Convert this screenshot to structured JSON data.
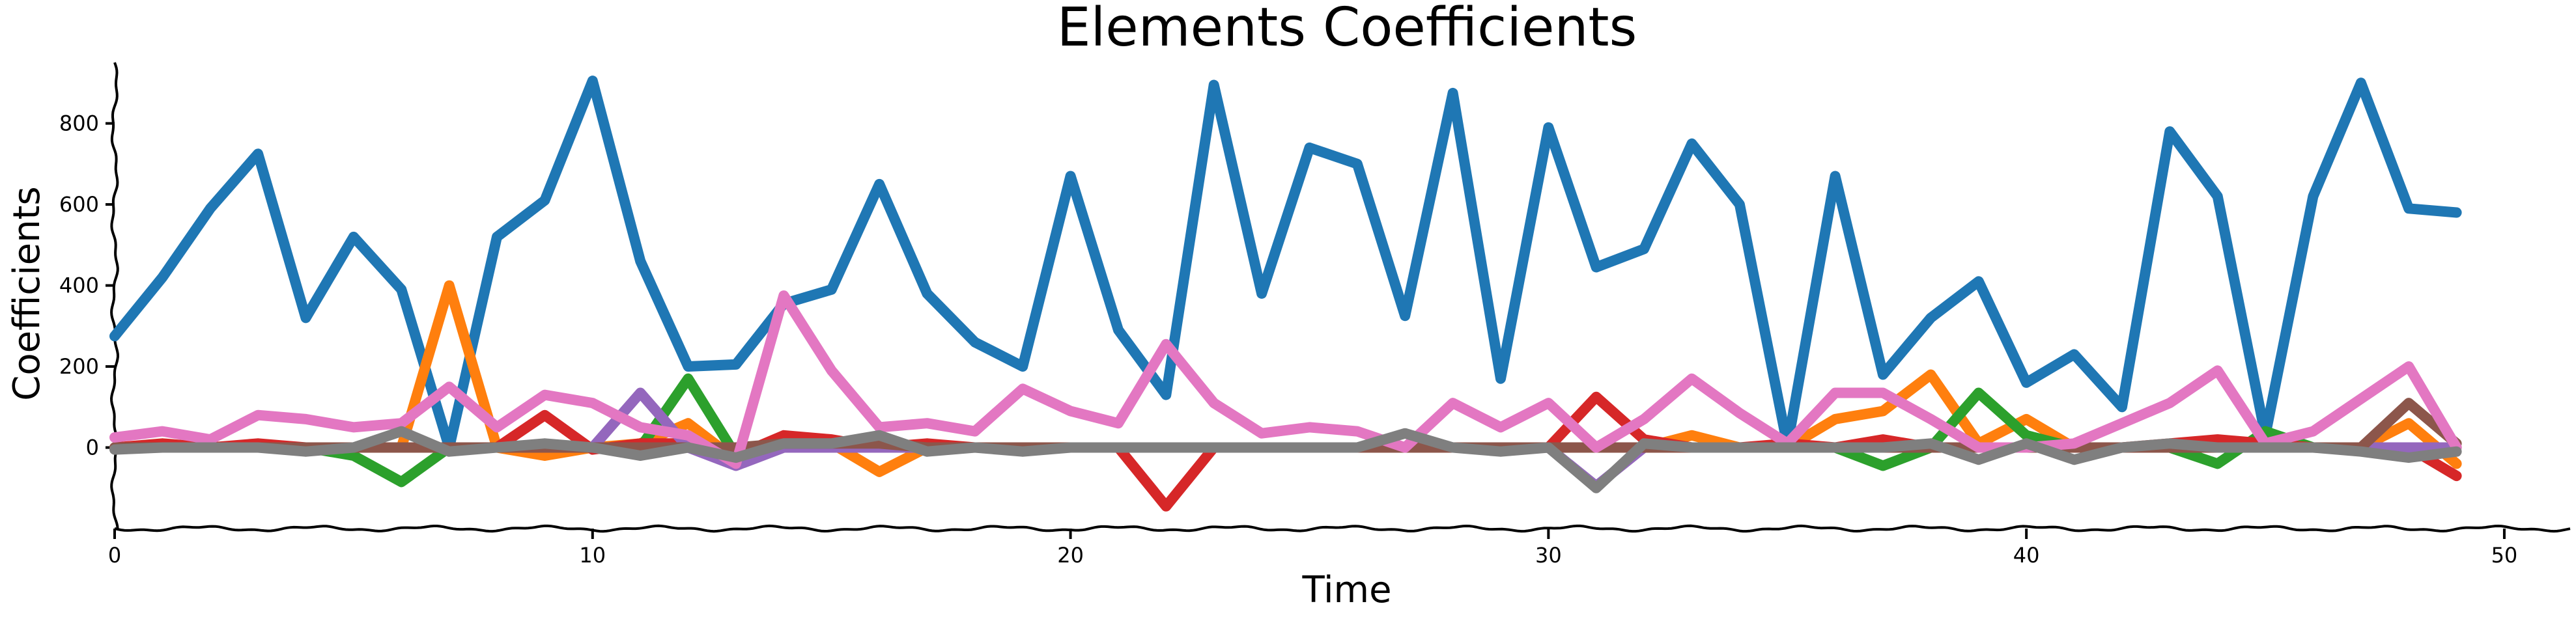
{
  "chart_data": {
    "type": "line",
    "title": "Elements Coefficients",
    "xlabel": "Time",
    "ylabel": "Coefficients",
    "xlim": [
      0,
      51.5
    ],
    "ylim": [
      -200,
      960
    ],
    "grid": false,
    "legend": "none",
    "xticks": [
      0,
      10,
      20,
      30,
      40,
      50
    ],
    "xtick_labels": [
      "0",
      "10",
      "20",
      "30",
      "40",
      "50"
    ],
    "yticks": [
      0,
      200,
      400,
      600,
      800
    ],
    "ytick_labels": [
      "0",
      "200",
      "400",
      "600",
      "800"
    ],
    "x": [
      0,
      1,
      2,
      3,
      4,
      5,
      6,
      7,
      8,
      9,
      10,
      11,
      12,
      13,
      14,
      15,
      16,
      17,
      18,
      19,
      20,
      21,
      22,
      23,
      24,
      25,
      26,
      27,
      28,
      29,
      30,
      31,
      32,
      33,
      34,
      35,
      36,
      37,
      38,
      39,
      40,
      41,
      42,
      43,
      44,
      45,
      46,
      47,
      48,
      49
    ],
    "series": [
      {
        "color": "#1f77b4",
        "values": [
          275,
          420,
          590,
          725,
          320,
          520,
          390,
          0,
          520,
          610,
          905,
          460,
          200,
          205,
          355,
          390,
          650,
          380,
          260,
          200,
          670,
          290,
          130,
          895,
          380,
          740,
          700,
          325,
          875,
          170,
          790,
          445,
          490,
          750,
          600,
          5,
          670,
          180,
          320,
          410,
          160,
          230,
          100,
          780,
          620,
          30,
          620,
          900,
          590,
          580
        ]
      },
      {
        "color": "#ff7f0e",
        "values": [
          0,
          0,
          0,
          0,
          0,
          0,
          0,
          400,
          0,
          -20,
          0,
          10,
          60,
          -30,
          20,
          10,
          -60,
          0,
          0,
          0,
          0,
          0,
          0,
          0,
          0,
          0,
          0,
          0,
          0,
          0,
          0,
          0,
          0,
          30,
          0,
          0,
          70,
          90,
          180,
          10,
          70,
          0,
          0,
          0,
          0,
          0,
          0,
          0,
          60,
          -40
        ]
      },
      {
        "color": "#2ca02c",
        "values": [
          0,
          0,
          0,
          0,
          0,
          -20,
          -85,
          0,
          0,
          0,
          0,
          0,
          170,
          -20,
          0,
          0,
          0,
          0,
          0,
          0,
          0,
          0,
          0,
          0,
          0,
          0,
          0,
          0,
          0,
          0,
          0,
          0,
          0,
          0,
          0,
          0,
          0,
          -45,
          0,
          135,
          30,
          0,
          0,
          0,
          -40,
          40,
          0,
          0,
          0,
          0
        ]
      },
      {
        "color": "#d62728",
        "values": [
          0,
          10,
          0,
          10,
          0,
          0,
          0,
          0,
          0,
          80,
          -5,
          10,
          10,
          -20,
          30,
          20,
          0,
          10,
          0,
          0,
          0,
          0,
          -145,
          0,
          0,
          0,
          0,
          0,
          0,
          0,
          0,
          125,
          20,
          0,
          0,
          10,
          0,
          20,
          0,
          0,
          0,
          0,
          0,
          10,
          20,
          10,
          0,
          0,
          0,
          -70
        ]
      },
      {
        "color": "#9467bd",
        "values": [
          0,
          0,
          0,
          0,
          0,
          0,
          0,
          0,
          0,
          0,
          0,
          135,
          0,
          -45,
          0,
          0,
          0,
          0,
          0,
          0,
          0,
          0,
          0,
          0,
          0,
          0,
          0,
          0,
          0,
          0,
          0,
          -95,
          0,
          0,
          0,
          0,
          0,
          0,
          0,
          0,
          0,
          0,
          0,
          0,
          0,
          0,
          0,
          0,
          0,
          0
        ]
      },
      {
        "color": "#8c564b",
        "values": [
          0,
          0,
          0,
          0,
          0,
          0,
          0,
          0,
          0,
          0,
          0,
          0,
          0,
          0,
          10,
          10,
          10,
          0,
          0,
          0,
          0,
          0,
          0,
          0,
          0,
          0,
          0,
          0,
          0,
          0,
          0,
          0,
          0,
          0,
          0,
          0,
          0,
          0,
          0,
          0,
          0,
          0,
          0,
          0,
          0,
          0,
          0,
          0,
          110,
          10
        ]
      },
      {
        "color": "#e377c2",
        "values": [
          25,
          40,
          20,
          80,
          70,
          50,
          60,
          150,
          50,
          130,
          110,
          50,
          30,
          -40,
          375,
          190,
          50,
          60,
          40,
          145,
          90,
          60,
          255,
          110,
          35,
          50,
          40,
          0,
          110,
          50,
          110,
          0,
          70,
          170,
          85,
          10,
          135,
          135,
          70,
          0,
          0,
          10,
          60,
          110,
          190,
          10,
          40,
          120,
          200,
          0
        ]
      },
      {
        "color": "#7f7f7f",
        "values": [
          -5,
          0,
          0,
          0,
          -10,
          0,
          40,
          -10,
          0,
          10,
          0,
          -20,
          0,
          -25,
          10,
          10,
          30,
          -10,
          0,
          -10,
          0,
          0,
          0,
          0,
          0,
          0,
          0,
          35,
          0,
          -10,
          0,
          -100,
          10,
          0,
          0,
          0,
          0,
          0,
          10,
          -30,
          10,
          -30,
          0,
          10,
          0,
          0,
          0,
          -10,
          -25,
          -10
        ]
      }
    ]
  }
}
